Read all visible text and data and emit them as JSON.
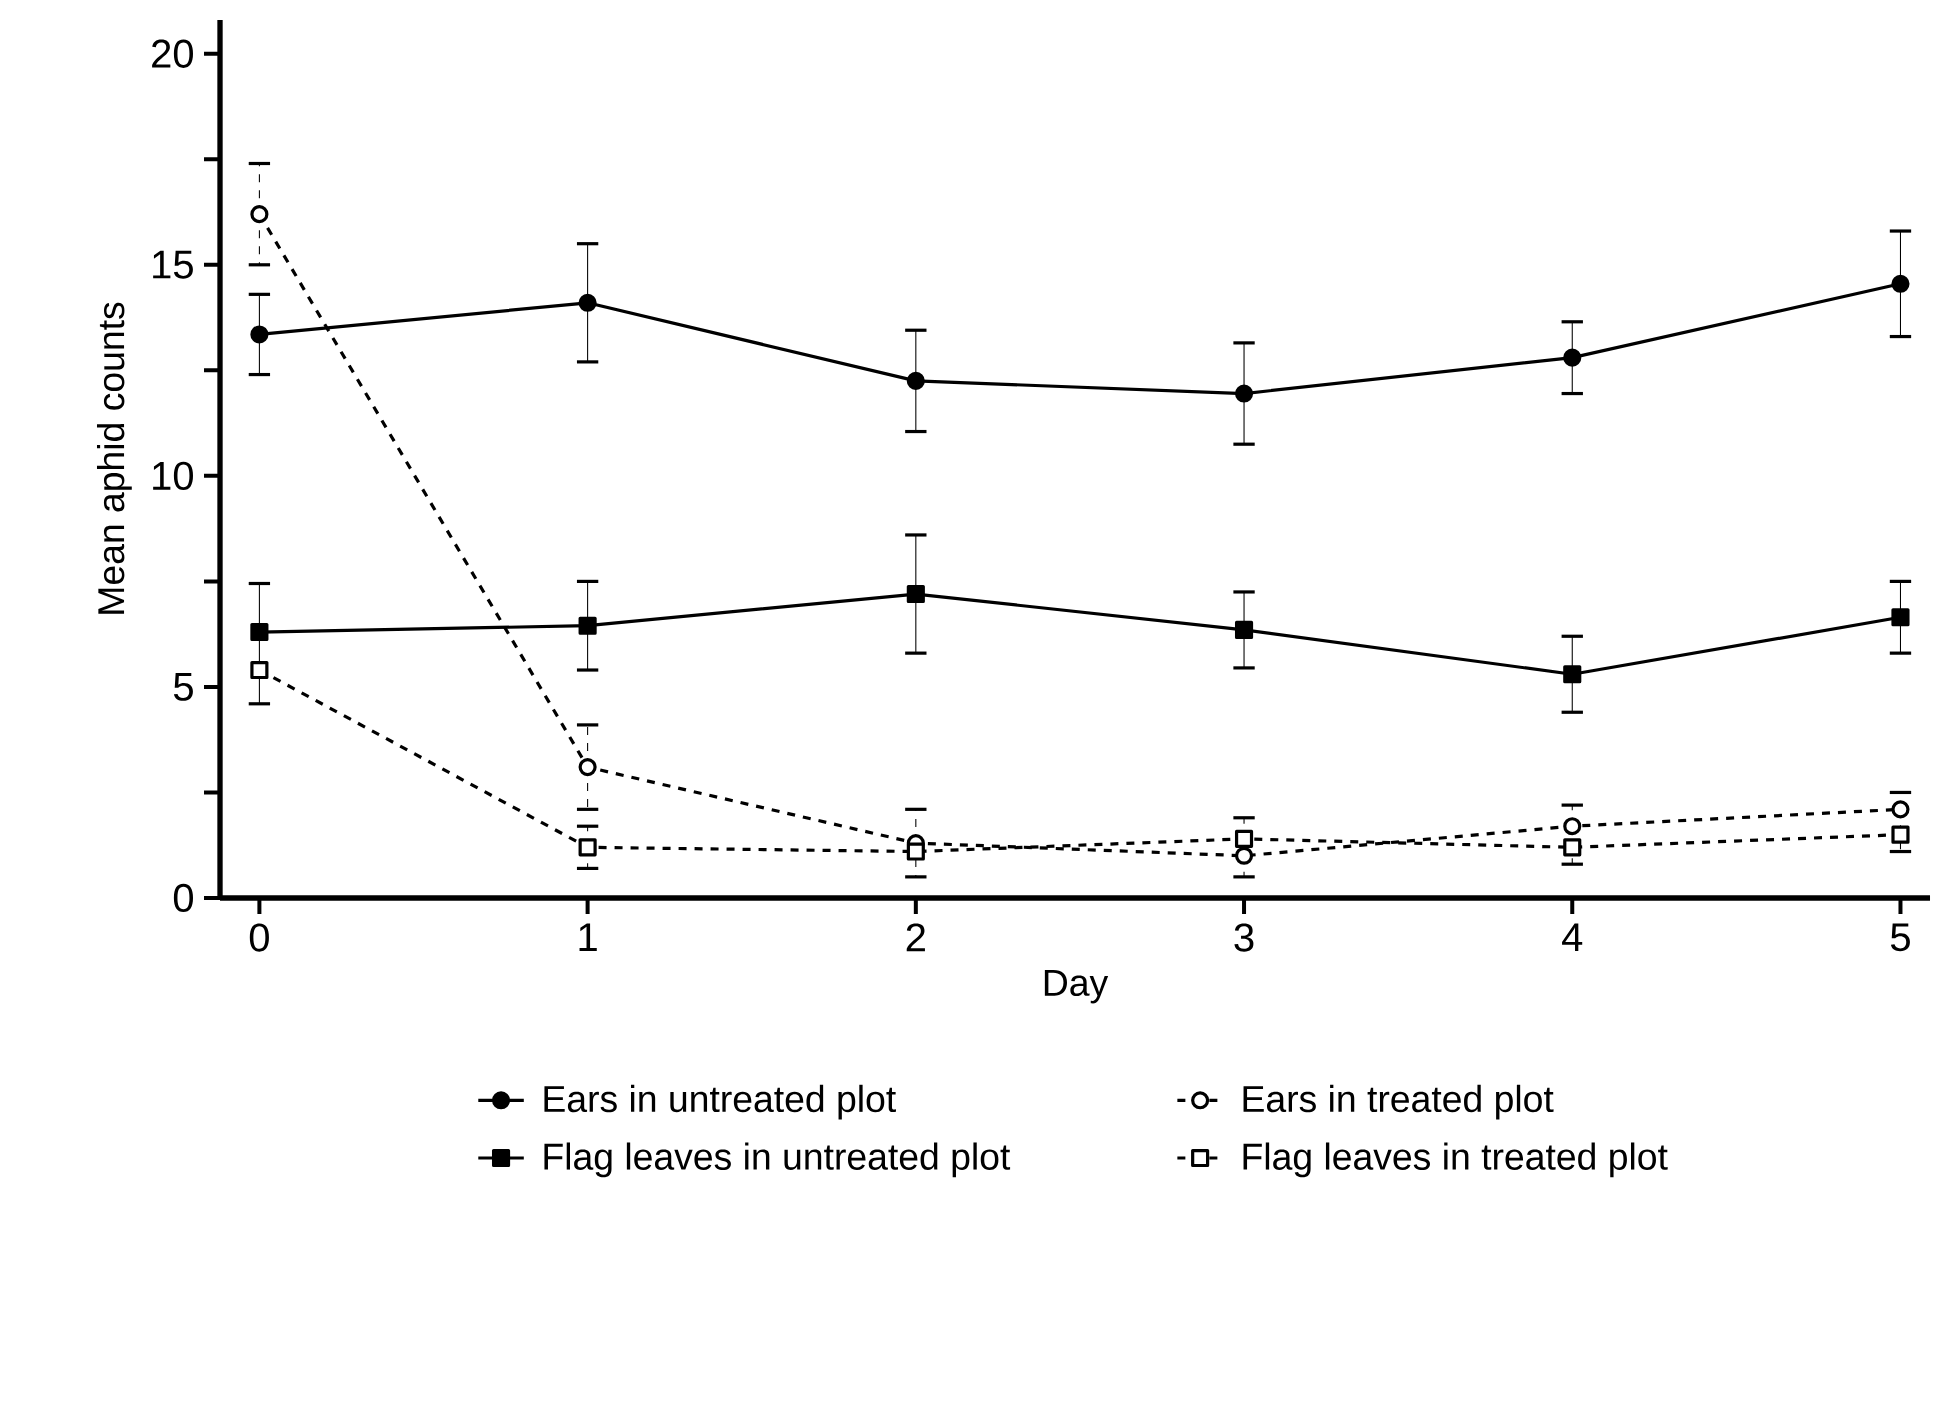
{
  "chart_data": {
    "type": "line",
    "xlabel": "Day",
    "ylabel": "Mean aphid counts",
    "x": [
      0,
      1,
      2,
      3,
      4,
      5
    ],
    "xlim": [
      -0.12,
      5.09
    ],
    "ylim": [
      0,
      20.8
    ],
    "xticks": [
      0,
      1,
      2,
      3,
      4,
      5
    ],
    "yticks": [
      0,
      {
        "value": 2.5,
        "label": null
      },
      5,
      {
        "value": 7.5,
        "label": null
      },
      10,
      {
        "value": 12.5,
        "label": null
      },
      15,
      {
        "value": 17.5,
        "label": null
      },
      20
    ],
    "legend": "bottom",
    "grid": false,
    "series": [
      {
        "name": "Ears in untreated plot",
        "color": "#000000",
        "marker": "circle",
        "line_style": "solid",
        "values": [
          13.35,
          14.1,
          12.25,
          11.95,
          12.8,
          14.55
        ],
        "errors": [
          0.95,
          1.4,
          1.2,
          1.2,
          0.85,
          1.25
        ]
      },
      {
        "name": "Ears in treated plot",
        "color": "#000000",
        "marker": "circle",
        "line_style": "dashed",
        "values": [
          16.2,
          3.1,
          1.3,
          1.0,
          1.7,
          2.1
        ],
        "errors": [
          1.2,
          1.0,
          [
            0.5,
            2.1
          ],
          [
            0.5,
            1.9
          ],
          [
            0.8,
            2.2
          ],
          [
            1.1,
            2.5
          ]
        ]
      },
      {
        "name": "Flag leaves in untreated plot",
        "color": "#000000",
        "marker": "square",
        "line_style": "solid",
        "values": [
          6.3,
          6.45,
          7.2,
          6.35,
          5.3,
          6.65
        ],
        "errors": [
          [
            4.6,
            7.45
          ],
          1.05,
          1.4,
          0.9,
          0.9,
          0.85
        ]
      },
      {
        "name": "Flag leaves in treated plot",
        "color": "#000000",
        "marker": "square",
        "line_style": "dashed",
        "values": [
          5.4,
          1.2,
          1.1,
          1.4,
          1.2,
          1.5
        ],
        "errors": [
          null,
          0.5,
          null,
          null,
          null,
          null
        ]
      }
    ]
  }
}
